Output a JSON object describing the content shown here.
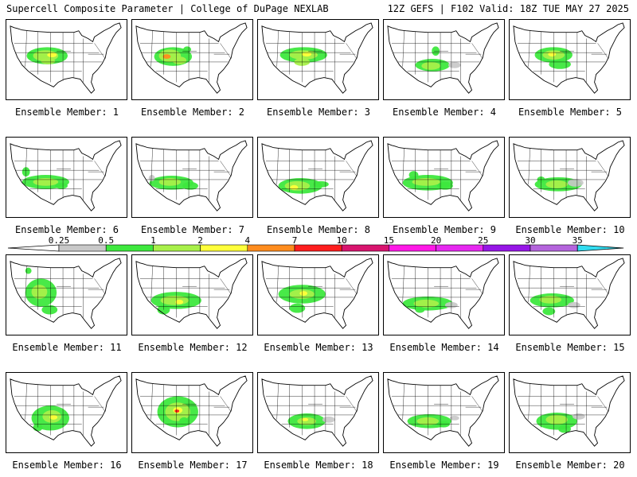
{
  "header": {
    "left": "Supercell Composite Parameter | College of DuPage NEXLAB",
    "right": "12Z GEFS | F102 Valid: 18Z TUE MAY 27 2025"
  },
  "colorbar": {
    "labels": [
      "0.25",
      "0.5",
      "1",
      "2",
      "4",
      "7",
      "10",
      "15",
      "20",
      "25",
      "30",
      "35"
    ],
    "colors": [
      "#c8c8c8",
      "#3ee83e",
      "#a8f04a",
      "#ffff3a",
      "#ff8c1e",
      "#ff1e1e",
      "#d8146e",
      "#ff19e6",
      "#e628f0",
      "#9616e6",
      "#b464dc",
      "#32dcf0"
    ]
  },
  "panels": [
    {
      "label": "Ensemble Member: 1",
      "blobs": [
        [
          52,
          46,
          26,
          11,
          1
        ],
        [
          50,
          46,
          16,
          7,
          2
        ],
        [
          58,
          45,
          6,
          3,
          3
        ],
        [
          53,
          53,
          9,
          4,
          2
        ],
        [
          30,
          46,
          4,
          5,
          1
        ]
      ]
    },
    {
      "label": "Ensemble Member: 2",
      "blobs": [
        [
          52,
          47,
          24,
          12,
          1
        ],
        [
          48,
          46,
          14,
          8,
          2
        ],
        [
          44,
          47,
          5,
          3,
          4
        ],
        [
          60,
          52,
          9,
          5,
          2
        ],
        [
          70,
          38,
          5,
          4,
          1
        ]
      ]
    },
    {
      "label": "Ensemble Member: 3",
      "blobs": [
        [
          58,
          45,
          30,
          10,
          1
        ],
        [
          58,
          45,
          18,
          6,
          2
        ],
        [
          62,
          44,
          6,
          3,
          3
        ],
        [
          56,
          54,
          10,
          5,
          2
        ]
      ]
    },
    {
      "label": "Ensemble Member: 4",
      "blobs": [
        [
          62,
          58,
          22,
          8,
          1
        ],
        [
          60,
          59,
          12,
          5,
          2
        ],
        [
          66,
          40,
          5,
          6,
          1
        ],
        [
          90,
          58,
          8,
          4,
          0
        ]
      ]
    },
    {
      "label": "Ensemble Member: 5",
      "blobs": [
        [
          56,
          45,
          24,
          10,
          1
        ],
        [
          56,
          45,
          14,
          6,
          2
        ],
        [
          54,
          44,
          5,
          3,
          3
        ],
        [
          64,
          57,
          14,
          6,
          1
        ]
      ]
    },
    {
      "label": "Ensemble Member: 6",
      "blobs": [
        [
          50,
          57,
          30,
          9,
          1
        ],
        [
          50,
          57,
          16,
          5,
          2
        ],
        [
          25,
          44,
          5,
          6,
          1
        ],
        [
          70,
          62,
          8,
          4,
          1
        ]
      ]
    },
    {
      "label": "Ensemble Member: 7",
      "blobs": [
        [
          50,
          58,
          28,
          9,
          1
        ],
        [
          48,
          57,
          14,
          5,
          2
        ],
        [
          74,
          62,
          10,
          5,
          1
        ],
        [
          25,
          52,
          4,
          4,
          0
        ]
      ]
    },
    {
      "label": "Ensemble Member: 8",
      "blobs": [
        [
          54,
          62,
          28,
          10,
          1
        ],
        [
          50,
          62,
          16,
          6,
          2
        ],
        [
          46,
          64,
          5,
          3,
          3
        ],
        [
          80,
          60,
          10,
          4,
          1
        ]
      ]
    },
    {
      "label": "Ensemble Member: 9",
      "blobs": [
        [
          56,
          58,
          32,
          10,
          1
        ],
        [
          54,
          57,
          18,
          5,
          2
        ],
        [
          38,
          48,
          6,
          5,
          1
        ],
        [
          78,
          62,
          10,
          5,
          1
        ]
      ]
    },
    {
      "label": "Ensemble Member: 10",
      "blobs": [
        [
          62,
          60,
          30,
          9,
          1
        ],
        [
          60,
          60,
          14,
          5,
          2
        ],
        [
          84,
          58,
          10,
          5,
          0
        ],
        [
          40,
          54,
          5,
          4,
          1
        ]
      ]
    },
    {
      "label": "Ensemble Member: 11",
      "blobs": [
        [
          44,
          48,
          20,
          18,
          1
        ],
        [
          42,
          47,
          10,
          9,
          2
        ],
        [
          55,
          70,
          10,
          6,
          1
        ],
        [
          28,
          20,
          4,
          4,
          1
        ]
      ]
    },
    {
      "label": "Ensemble Member: 12",
      "blobs": [
        [
          56,
          58,
          32,
          11,
          1
        ],
        [
          54,
          58,
          18,
          6,
          2
        ],
        [
          60,
          60,
          5,
          3,
          3
        ],
        [
          40,
          70,
          8,
          6,
          1
        ]
      ]
    },
    {
      "label": "Ensemble Member: 13",
      "blobs": [
        [
          56,
          50,
          30,
          12,
          1
        ],
        [
          56,
          50,
          16,
          6,
          2
        ],
        [
          58,
          49,
          5,
          3,
          3
        ],
        [
          50,
          68,
          10,
          6,
          1
        ]
      ]
    },
    {
      "label": "Ensemble Member: 14",
      "blobs": [
        [
          56,
          62,
          32,
          9,
          1
        ],
        [
          54,
          62,
          16,
          5,
          2
        ],
        [
          86,
          64,
          8,
          4,
          0
        ],
        [
          46,
          70,
          6,
          4,
          1
        ]
      ]
    },
    {
      "label": "Ensemble Member: 15",
      "blobs": [
        [
          54,
          58,
          28,
          9,
          1
        ],
        [
          52,
          57,
          14,
          5,
          2
        ],
        [
          50,
          72,
          8,
          5,
          1
        ],
        [
          82,
          64,
          8,
          4,
          0
        ]
      ]
    },
    {
      "label": "Ensemble Member: 16",
      "blobs": [
        [
          56,
          58,
          24,
          16,
          1
        ],
        [
          58,
          56,
          12,
          8,
          2
        ],
        [
          60,
          57,
          5,
          3,
          3
        ],
        [
          40,
          70,
          6,
          5,
          1
        ]
      ]
    },
    {
      "label": "Ensemble Member: 17",
      "blobs": [
        [
          58,
          50,
          26,
          20,
          1
        ],
        [
          58,
          50,
          16,
          12,
          2
        ],
        [
          58,
          48,
          6,
          4,
          3
        ],
        [
          57,
          49,
          3,
          2,
          5
        ],
        [
          66,
          62,
          6,
          5,
          1
        ]
      ]
    },
    {
      "label": "Ensemble Member: 18",
      "blobs": [
        [
          62,
          62,
          24,
          10,
          1
        ],
        [
          62,
          62,
          12,
          5,
          2
        ],
        [
          60,
          60,
          4,
          2,
          3
        ],
        [
          90,
          60,
          8,
          4,
          0
        ]
      ]
    },
    {
      "label": "Ensemble Member: 19",
      "blobs": [
        [
          58,
          62,
          28,
          9,
          1
        ],
        [
          56,
          62,
          14,
          5,
          2
        ],
        [
          76,
          66,
          8,
          4,
          1
        ],
        [
          90,
          58,
          6,
          3,
          0
        ]
      ]
    },
    {
      "label": "Ensemble Member: 20",
      "blobs": [
        [
          60,
          62,
          26,
          11,
          1
        ],
        [
          60,
          60,
          14,
          6,
          2
        ],
        [
          70,
          72,
          8,
          5,
          1
        ],
        [
          88,
          56,
          8,
          4,
          0
        ]
      ]
    }
  ]
}
